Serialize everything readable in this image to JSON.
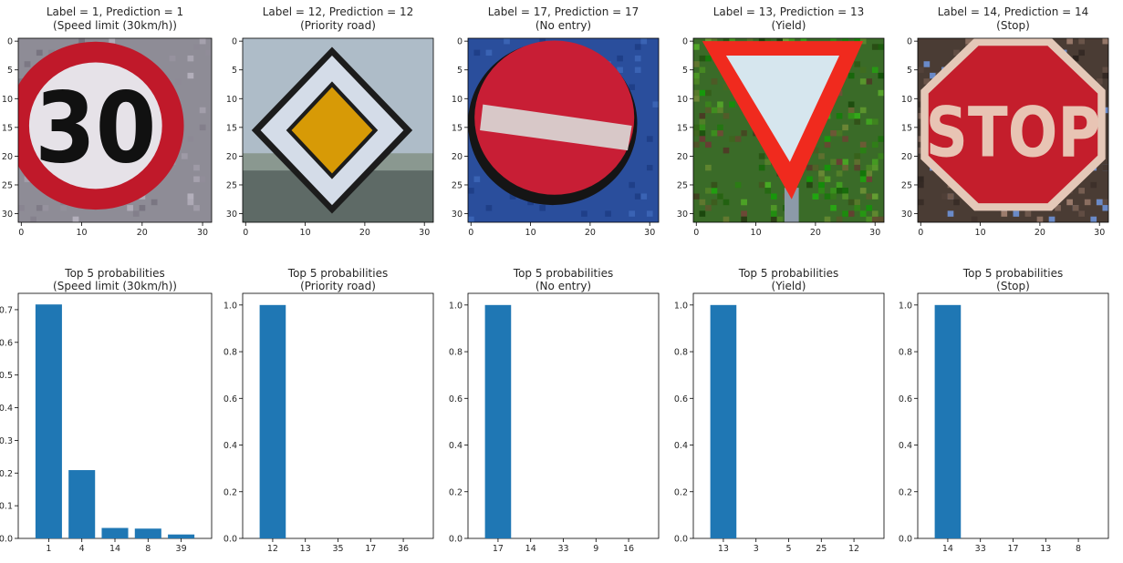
{
  "chart_data": [
    {
      "type": "image",
      "panel": "sign-1",
      "title": "Label = 1, Prediction = 1",
      "subtitle": "(Speed limit (30km/h))",
      "xticks": [
        "0",
        "10",
        "20",
        "30"
      ],
      "yticks": [
        "0",
        "5",
        "10",
        "15",
        "20",
        "25",
        "30"
      ],
      "xlim": [
        -0.5,
        31.5
      ],
      "ylim": [
        -0.5,
        31.5
      ],
      "sign": "speed-limit-30",
      "sign_text": "30",
      "colors": {
        "ring": "#c0192a",
        "face": "#e6e2e8",
        "digits": "#111111",
        "background": "#8e8c96"
      }
    },
    {
      "type": "image",
      "panel": "sign-2",
      "title": "Label = 12, Prediction = 12",
      "subtitle": "(Priority road)",
      "xticks": [
        "0",
        "10",
        "20",
        "30"
      ],
      "yticks": [
        "0",
        "5",
        "10",
        "15",
        "20",
        "25",
        "30"
      ],
      "xlim": [
        -0.5,
        31.5
      ],
      "ylim": [
        -0.5,
        31.5
      ],
      "sign": "priority-road",
      "colors": {
        "diamond": "#d79a06",
        "border": "#d4dce8",
        "edge": "#1c1c1c",
        "background": "#aebcc8"
      }
    },
    {
      "type": "image",
      "panel": "sign-3",
      "title": "Label = 17, Prediction = 17",
      "subtitle": "(No entry)",
      "xticks": [
        "0",
        "10",
        "20",
        "30"
      ],
      "yticks": [
        "0",
        "5",
        "10",
        "15",
        "20",
        "25",
        "30"
      ],
      "xlim": [
        -0.5,
        31.5
      ],
      "ylim": [
        -0.5,
        31.5
      ],
      "sign": "no-entry",
      "colors": {
        "disc": "#c81e35",
        "bar": "#d8c8c8",
        "background": "#2a4e9c"
      }
    },
    {
      "type": "image",
      "panel": "sign-4",
      "title": "Label = 13, Prediction = 13",
      "subtitle": "(Yield)",
      "xticks": [
        "0",
        "10",
        "20",
        "30"
      ],
      "yticks": [
        "0",
        "5",
        "10",
        "15",
        "20",
        "25",
        "30"
      ],
      "xlim": [
        -0.5,
        31.5
      ],
      "ylim": [
        -0.5,
        31.5
      ],
      "sign": "yield",
      "colors": {
        "border": "#f02a1e",
        "face": "#d6e6ee",
        "background": "#3a6b28"
      }
    },
    {
      "type": "image",
      "panel": "sign-5",
      "title": "Label = 14, Prediction = 14",
      "subtitle": "(Stop)",
      "xticks": [
        "0",
        "10",
        "20",
        "30"
      ],
      "yticks": [
        "0",
        "5",
        "10",
        "15",
        "20",
        "25",
        "30"
      ],
      "xlim": [
        -0.5,
        31.5
      ],
      "ylim": [
        -0.5,
        31.5
      ],
      "sign": "stop",
      "sign_text": "STOP",
      "colors": {
        "octagon": "#c41e2c",
        "letters": "#e8c4b4",
        "background": "#4a3c34"
      }
    },
    {
      "type": "bar",
      "panel": "probs-1",
      "title": "Top 5 probabilities",
      "subtitle": "(Speed limit (30km/h))",
      "categories": [
        "1",
        "4",
        "14",
        "8",
        "39"
      ],
      "values": [
        0.716,
        0.209,
        0.032,
        0.03,
        0.012
      ],
      "ylim": [
        0,
        0.75
      ],
      "yticks": [
        "0.0",
        "0.1",
        "0.2",
        "0.3",
        "0.4",
        "0.5",
        "0.6",
        "0.7"
      ],
      "color": "#1f77b4"
    },
    {
      "type": "bar",
      "panel": "probs-2",
      "title": "Top 5 probabilities",
      "subtitle": "(Priority road)",
      "categories": [
        "12",
        "13",
        "35",
        "17",
        "36"
      ],
      "values": [
        1.0,
        0.0,
        0.0,
        0.0,
        0.0
      ],
      "ylim": [
        0,
        1.05
      ],
      "yticks": [
        "0.0",
        "0.2",
        "0.4",
        "0.6",
        "0.8",
        "1.0"
      ],
      "color": "#1f77b4"
    },
    {
      "type": "bar",
      "panel": "probs-3",
      "title": "Top 5 probabilities",
      "subtitle": "(No entry)",
      "categories": [
        "17",
        "14",
        "33",
        "9",
        "16"
      ],
      "values": [
        1.0,
        0.0,
        0.0,
        0.0,
        0.0
      ],
      "ylim": [
        0,
        1.05
      ],
      "yticks": [
        "0.0",
        "0.2",
        "0.4",
        "0.6",
        "0.8",
        "1.0"
      ],
      "color": "#1f77b4"
    },
    {
      "type": "bar",
      "panel": "probs-4",
      "title": "Top 5 probabilities",
      "subtitle": "(Yield)",
      "categories": [
        "13",
        "3",
        "5",
        "25",
        "12"
      ],
      "values": [
        1.0,
        0.0,
        0.0,
        0.0,
        0.0
      ],
      "ylim": [
        0,
        1.05
      ],
      "yticks": [
        "0.0",
        "0.2",
        "0.4",
        "0.6",
        "0.8",
        "1.0"
      ],
      "color": "#1f77b4"
    },
    {
      "type": "bar",
      "panel": "probs-5",
      "title": "Top 5 probabilities",
      "subtitle": "(Stop)",
      "categories": [
        "14",
        "33",
        "17",
        "13",
        "8"
      ],
      "values": [
        1.0,
        0.0,
        0.0,
        0.0,
        0.0
      ],
      "ylim": [
        0,
        1.05
      ],
      "yticks": [
        "0.0",
        "0.2",
        "0.4",
        "0.6",
        "0.8",
        "1.0"
      ],
      "color": "#1f77b4"
    }
  ]
}
